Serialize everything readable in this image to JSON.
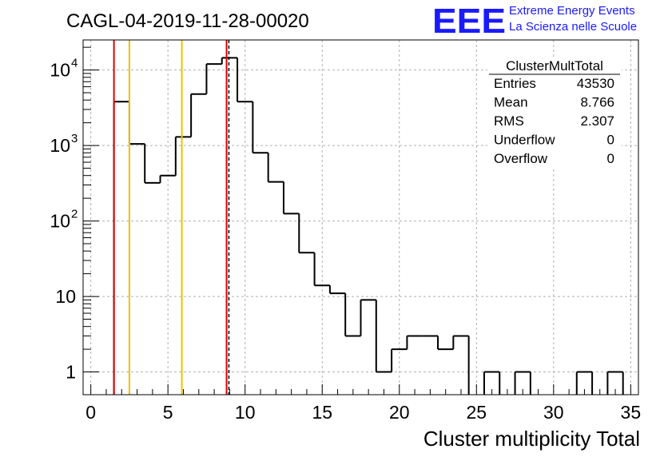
{
  "header": {
    "title": "CAGL-04-2019-11-28-00020",
    "logo_text": "EEE",
    "logo_line1": "Extreme Energy Events",
    "logo_line2": "La Scienza nelle Scuole",
    "logo_color": "#1a1aff"
  },
  "stats": {
    "title": "ClusterMultTotal",
    "rows": [
      {
        "label": "Entries",
        "value": "43530"
      },
      {
        "label": "Mean",
        "value": "8.766"
      },
      {
        "label": "RMS",
        "value": "2.307"
      },
      {
        "label": "Underflow",
        "value": "0"
      },
      {
        "label": "Overflow",
        "value": "0"
      }
    ]
  },
  "chart_data": {
    "type": "histogram",
    "title": "CAGL-04-2019-11-28-00020",
    "xlabel": "Cluster multiplicity Total",
    "ylabel": "",
    "xlim": [
      -0.5,
      35.5
    ],
    "ylim": [
      0.5,
      25000
    ],
    "y_scale": "log",
    "grid": true,
    "bin_width": 1,
    "bins": [
      {
        "x": 0,
        "count": 0
      },
      {
        "x": 1,
        "count": 0
      },
      {
        "x": 2,
        "count": 3800
      },
      {
        "x": 3,
        "count": 1050
      },
      {
        "x": 4,
        "count": 320
      },
      {
        "x": 5,
        "count": 400
      },
      {
        "x": 6,
        "count": 1300
      },
      {
        "x": 7,
        "count": 4800
      },
      {
        "x": 8,
        "count": 12000
      },
      {
        "x": 9,
        "count": 14500
      },
      {
        "x": 10,
        "count": 3800
      },
      {
        "x": 11,
        "count": 800
      },
      {
        "x": 12,
        "count": 330
      },
      {
        "x": 13,
        "count": 125
      },
      {
        "x": 14,
        "count": 38
      },
      {
        "x": 15,
        "count": 14
      },
      {
        "x": 16,
        "count": 11
      },
      {
        "x": 17,
        "count": 3
      },
      {
        "x": 18,
        "count": 9
      },
      {
        "x": 19,
        "count": 1
      },
      {
        "x": 20,
        "count": 2
      },
      {
        "x": 21,
        "count": 3
      },
      {
        "x": 22,
        "count": 3
      },
      {
        "x": 23,
        "count": 2
      },
      {
        "x": 24,
        "count": 3
      },
      {
        "x": 25,
        "count": 0
      },
      {
        "x": 26,
        "count": 1
      },
      {
        "x": 27,
        "count": 0
      },
      {
        "x": 28,
        "count": 1
      },
      {
        "x": 29,
        "count": 0
      },
      {
        "x": 30,
        "count": 0
      },
      {
        "x": 31,
        "count": 0
      },
      {
        "x": 32,
        "count": 1
      },
      {
        "x": 33,
        "count": 0
      },
      {
        "x": 34,
        "count": 1
      }
    ],
    "x_ticks": [
      0,
      5,
      10,
      15,
      20,
      25,
      30,
      35
    ],
    "x_tick_labels": [
      "0",
      "5",
      "10",
      "15",
      "20",
      "25",
      "30",
      "35"
    ],
    "y_ticks": [
      {
        "value": 1,
        "label": "1"
      },
      {
        "value": 10,
        "label": "10"
      },
      {
        "value": 100,
        "label": "10",
        "exp": "2"
      },
      {
        "value": 1000,
        "label": "10",
        "exp": "3"
      },
      {
        "value": 10000,
        "label": "10",
        "exp": "4"
      }
    ],
    "vertical_lines": [
      {
        "x": 1.5,
        "color": "#e00000",
        "style": "solid"
      },
      {
        "x": 2.5,
        "color": "#f0c000",
        "style": "solid"
      },
      {
        "x": 5.9,
        "color": "#f0c000",
        "style": "solid"
      },
      {
        "x": 8.8,
        "color": "#e00000",
        "style": "solid"
      },
      {
        "x": 8.95,
        "color": "#000000",
        "style": "dashed"
      }
    ],
    "colors": {
      "histogram": "#000000",
      "grid": "#b0b0b0",
      "frame": "#000000"
    }
  }
}
